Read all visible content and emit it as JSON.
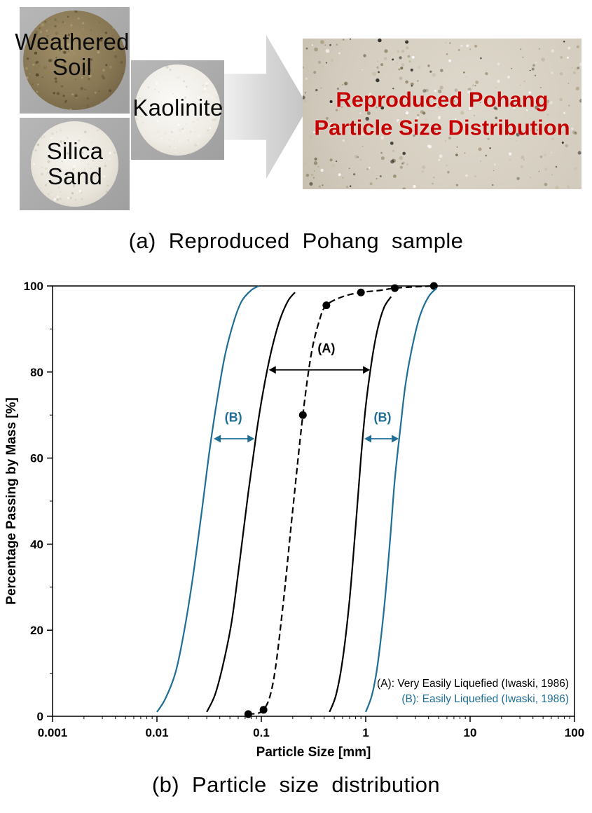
{
  "panel_a": {
    "materials": [
      {
        "label": "Weathered Soil"
      },
      {
        "label": "Silica Sand"
      },
      {
        "label": "Kaolinite"
      }
    ],
    "result_title_line1": "Reproduced Pohang",
    "result_title_line2": "Particle Size Distribution",
    "result_title_color": "#c40000",
    "caption": "(a)  Reproduced Pohang sample"
  },
  "panel_b": {
    "caption": "(b)  Particle size distribution"
  },
  "chart_data": {
    "type": "line",
    "title": "",
    "xlabel": "Particle Size [mm]",
    "ylabel": "Percentage Passing by Mass [%]",
    "x_scale": "log",
    "xlim": [
      0.001,
      100
    ],
    "ylim": [
      0,
      100
    ],
    "x_ticks": [
      0.001,
      0.01,
      0.1,
      1,
      10,
      100
    ],
    "x_tick_labels": [
      "0.001",
      "0.01",
      "0.1",
      "1",
      "10",
      "100"
    ],
    "y_ticks": [
      0,
      20,
      40,
      60,
      80,
      100
    ],
    "grid": false,
    "accent_blue": "#1e6e96",
    "series": [
      {
        "name": "easily-liquefied-lower-bound",
        "style": "solid",
        "color": "#1e6e96",
        "width": 2.2,
        "points": [
          [
            0.01,
            1
          ],
          [
            0.012,
            4
          ],
          [
            0.015,
            10
          ],
          [
            0.018,
            19
          ],
          [
            0.022,
            32
          ],
          [
            0.027,
            48
          ],
          [
            0.032,
            62
          ],
          [
            0.038,
            74
          ],
          [
            0.045,
            84
          ],
          [
            0.055,
            92
          ],
          [
            0.065,
            96.5
          ],
          [
            0.08,
            99
          ],
          [
            0.095,
            100
          ]
        ]
      },
      {
        "name": "very-easily-liquefied-lower-bound",
        "style": "solid",
        "color": "#000000",
        "width": 2.2,
        "points": [
          [
            0.03,
            1
          ],
          [
            0.036,
            5
          ],
          [
            0.043,
            12
          ],
          [
            0.052,
            22
          ],
          [
            0.062,
            36
          ],
          [
            0.075,
            52
          ],
          [
            0.09,
            66
          ],
          [
            0.105,
            76
          ],
          [
            0.125,
            85
          ],
          [
            0.15,
            92
          ],
          [
            0.18,
            96.5
          ],
          [
            0.21,
            98.5
          ]
        ]
      },
      {
        "name": "reproduced-pohang-sample",
        "style": "dashed",
        "color": "#000000",
        "width": 2.2,
        "marker": "circle",
        "points": [
          [
            0.075,
            0.5
          ],
          [
            0.105,
            1.5
          ],
          [
            0.13,
            8
          ],
          [
            0.16,
            25
          ],
          [
            0.2,
            48
          ],
          [
            0.25,
            70
          ],
          [
            0.3,
            84
          ],
          [
            0.36,
            92
          ],
          [
            0.42,
            95.5
          ],
          [
            0.6,
            97.5
          ],
          [
            0.9,
            98.5
          ],
          [
            1.4,
            99
          ],
          [
            1.9,
            99.5
          ],
          [
            3.0,
            99.8
          ],
          [
            4.5,
            100
          ]
        ],
        "marker_points": [
          [
            0.075,
            0.5
          ],
          [
            0.105,
            1.5
          ],
          [
            0.25,
            70
          ],
          [
            0.42,
            95.5
          ],
          [
            0.9,
            98.5
          ],
          [
            1.9,
            99.5
          ],
          [
            4.5,
            100
          ]
        ]
      },
      {
        "name": "very-easily-liquefied-upper-bound",
        "style": "solid",
        "color": "#000000",
        "width": 2.2,
        "points": [
          [
            0.45,
            1
          ],
          [
            0.52,
            5
          ],
          [
            0.6,
            13
          ],
          [
            0.7,
            27
          ],
          [
            0.8,
            44
          ],
          [
            0.9,
            60
          ],
          [
            1.0,
            72
          ],
          [
            1.15,
            83
          ],
          [
            1.3,
            90
          ],
          [
            1.5,
            95
          ],
          [
            1.75,
            97.5
          ]
        ]
      },
      {
        "name": "easily-liquefied-upper-bound",
        "style": "solid",
        "color": "#1e6e96",
        "width": 2.2,
        "points": [
          [
            1.0,
            1
          ],
          [
            1.15,
            5
          ],
          [
            1.3,
            12
          ],
          [
            1.5,
            25
          ],
          [
            1.7,
            40
          ],
          [
            1.9,
            55
          ],
          [
            2.15,
            67
          ],
          [
            2.4,
            77
          ],
          [
            2.8,
            86
          ],
          [
            3.3,
            93
          ],
          [
            4.0,
            97.5
          ],
          [
            4.8,
            99.5
          ]
        ]
      }
    ],
    "annotations": [
      {
        "label": "(A)",
        "y": 80.5,
        "x1": 0.118,
        "x2": 1.1,
        "color": "#000000",
        "label_x": 0.42,
        "label_y": 84.5
      },
      {
        "label": "(B)",
        "y": 64.5,
        "x1": 0.035,
        "x2": 0.086,
        "color": "#1e6e96",
        "label_x": 0.054,
        "label_y": 68.5
      },
      {
        "label": "(B)",
        "y": 64.5,
        "x1": 0.97,
        "x2": 2.07,
        "color": "#1e6e96",
        "label_x": 1.45,
        "label_y": 68.5
      }
    ],
    "legend": [
      {
        "label": "(A): Very Easily Liquefied (Iwaski, 1986)",
        "color": "#000000"
      },
      {
        "label": "(B): Easily Liquefied (Iwaski, 1986)",
        "color": "#1e6e96"
      }
    ],
    "legend_position": "lower right"
  }
}
